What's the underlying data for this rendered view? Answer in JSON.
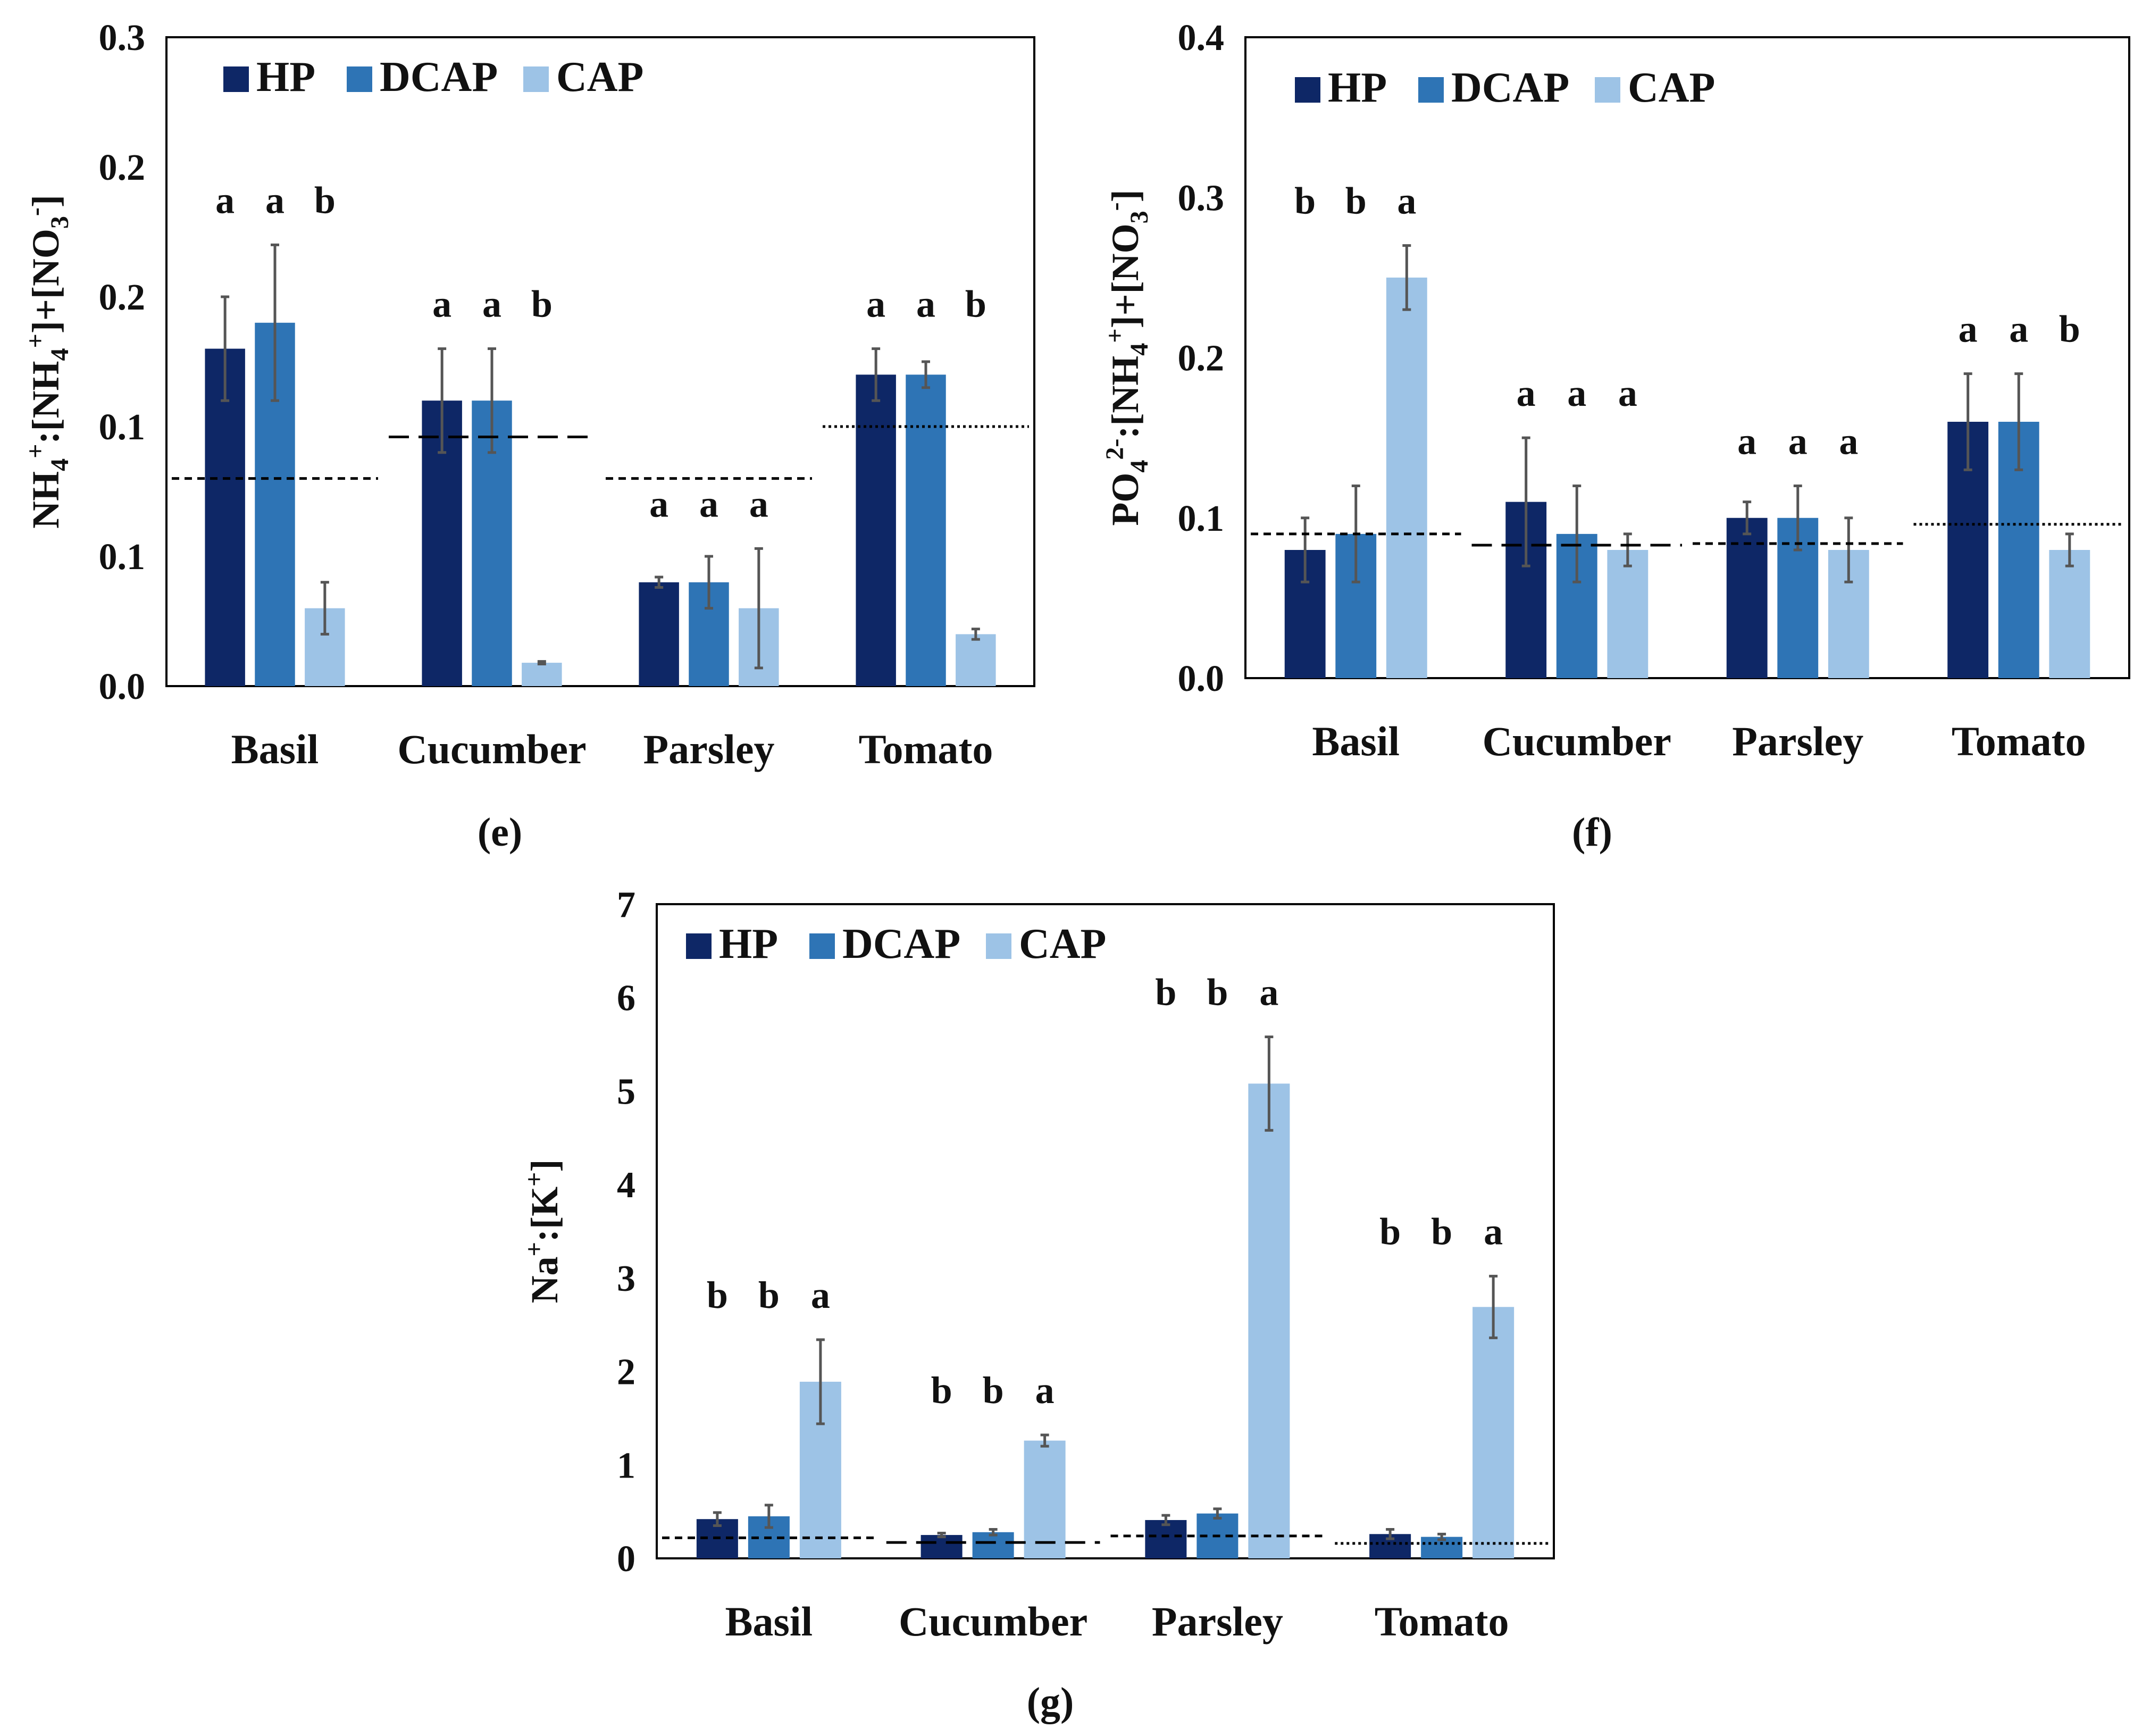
{
  "colors": {
    "HP": "#0e2766",
    "DCAP": "#2e74b5",
    "CAP": "#9dc3e6",
    "axis": "#000000",
    "error": "#555555"
  },
  "chart_data": [
    {
      "id": "e",
      "type": "bar",
      "panel_label": "(e)",
      "ylabel_parts": [
        "NH",
        "4",
        "+",
        ":[NH",
        "4",
        "+",
        "]+[NO",
        "3",
        "-",
        "]"
      ],
      "ylim": [
        0,
        0.25
      ],
      "yticks": [
        0,
        0.05,
        0.1,
        0.15,
        0.2,
        0.25
      ],
      "ytick_labels": [
        "0.0",
        "0.1",
        "0.1",
        "0.2",
        "0.2",
        "0.3"
      ],
      "categories": [
        "Basil",
        "Cucumber",
        "Parsley",
        "Tomato"
      ],
      "series": [
        {
          "name": "HP",
          "values": [
            0.13,
            0.11,
            0.04,
            0.12
          ],
          "errors": [
            0.02,
            0.02,
            0.002,
            0.01
          ]
        },
        {
          "name": "DCAP",
          "values": [
            0.14,
            0.11,
            0.04,
            0.12
          ],
          "errors": [
            0.03,
            0.02,
            0.01,
            0.005
          ]
        },
        {
          "name": "CAP",
          "values": [
            0.03,
            0.009,
            0.03,
            0.02
          ],
          "errors": [
            0.01,
            0.0005,
            0.023,
            0.002
          ]
        }
      ],
      "letters": [
        [
          "a",
          "a",
          "b"
        ],
        [
          "a",
          "a",
          "b"
        ],
        [
          "a",
          "a",
          "a"
        ],
        [
          "a",
          "a",
          "b"
        ]
      ],
      "reference": [
        {
          "value": 0.08,
          "style": "dashed"
        },
        {
          "value": 0.096,
          "style": "longdash"
        },
        {
          "value": 0.08,
          "style": "dashed"
        },
        {
          "value": 0.1,
          "style": "dotted"
        }
      ],
      "legend": "top-left"
    },
    {
      "id": "f",
      "type": "bar",
      "panel_label": "(f)",
      "ylabel_parts": [
        "PO",
        "4",
        "2-",
        ":[NH",
        "4",
        "+",
        "]+[NO",
        "3",
        "-",
        "]"
      ],
      "ylim": [
        0,
        0.4
      ],
      "yticks": [
        0,
        0.1,
        0.2,
        0.3,
        0.4
      ],
      "ytick_labels": [
        "0.0",
        "0.1",
        "0.2",
        "0.3",
        "0.4"
      ],
      "categories": [
        "Basil",
        "Cucumber",
        "Parsley",
        "Tomato"
      ],
      "series": [
        {
          "name": "HP",
          "values": [
            0.08,
            0.11,
            0.1,
            0.16
          ],
          "errors": [
            0.02,
            0.04,
            0.01,
            0.03
          ]
        },
        {
          "name": "DCAP",
          "values": [
            0.09,
            0.09,
            0.1,
            0.16
          ],
          "errors": [
            0.03,
            0.03,
            0.02,
            0.03
          ]
        },
        {
          "name": "CAP",
          "values": [
            0.25,
            0.08,
            0.08,
            0.08
          ],
          "errors": [
            0.02,
            0.01,
            0.02,
            0.01
          ]
        }
      ],
      "letters": [
        [
          "b",
          "b",
          "a"
        ],
        [
          "a",
          "a",
          "a"
        ],
        [
          "a",
          "a",
          "a"
        ],
        [
          "a",
          "a",
          "b"
        ]
      ],
      "reference": [
        {
          "value": 0.09,
          "style": "dashed"
        },
        {
          "value": 0.083,
          "style": "longdash"
        },
        {
          "value": 0.084,
          "style": "dashed"
        },
        {
          "value": 0.096,
          "style": "dotted"
        }
      ],
      "legend": "top-left"
    },
    {
      "id": "g",
      "type": "bar",
      "panel_label": "(g)",
      "ylabel_parts": [
        "Na",
        "",
        "+",
        ":[K",
        "",
        "+",
        "]"
      ],
      "ylim": [
        0,
        7
      ],
      "yticks": [
        0,
        1,
        2,
        3,
        4,
        5,
        6,
        7
      ],
      "ytick_labels": [
        "0",
        "1",
        "2",
        "3",
        "4",
        "5",
        "6",
        "7"
      ],
      "categories": [
        "Basil",
        "Cucumber",
        "Parsley",
        "Tomato"
      ],
      "series": [
        {
          "name": "HP",
          "values": [
            0.42,
            0.25,
            0.41,
            0.26
          ],
          "errors": [
            0.07,
            0.02,
            0.05,
            0.05
          ]
        },
        {
          "name": "DCAP",
          "values": [
            0.45,
            0.28,
            0.48,
            0.23
          ],
          "errors": [
            0.12,
            0.03,
            0.05,
            0.03
          ]
        },
        {
          "name": "CAP",
          "values": [
            1.89,
            1.26,
            5.08,
            2.69
          ],
          "errors": [
            0.45,
            0.06,
            0.5,
            0.33
          ]
        }
      ],
      "letters": [
        [
          "b",
          "b",
          "a"
        ],
        [
          "b",
          "b",
          "a"
        ],
        [
          "b",
          "b",
          "a"
        ],
        [
          "b",
          "b",
          "a"
        ]
      ],
      "reference": [
        {
          "value": 0.22,
          "style": "dashed"
        },
        {
          "value": 0.17,
          "style": "longdash"
        },
        {
          "value": 0.24,
          "style": "dashed"
        },
        {
          "value": 0.16,
          "style": "dotted"
        }
      ],
      "legend": "top-left"
    }
  ]
}
